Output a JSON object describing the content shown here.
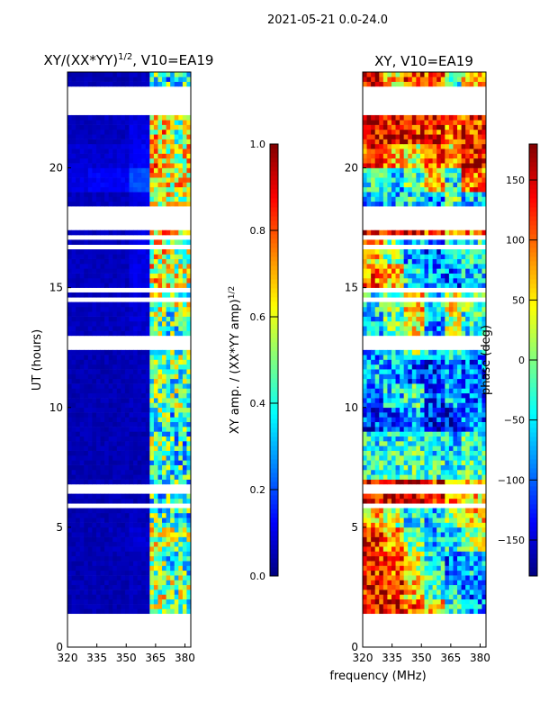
{
  "chart_data": [
    {
      "type": "heatmap",
      "suptitle": "2021-05-21 0.0-24.0",
      "title": "XY/(XX*YY)",
      "title_sup": "1/2",
      "title_suffix": ", V10=EA19",
      "xlabel": "frequency (MHz)",
      "ylabel": "UT (hours)",
      "xlim": [
        320,
        383
      ],
      "ylim": [
        0,
        24
      ],
      "xticks": [
        320,
        335,
        350,
        365,
        380
      ],
      "yticks": [
        0,
        5,
        10,
        15,
        20
      ],
      "colormap": "jet",
      "colorbar": {
        "label": "XY amp. / (XX*YY amp)",
        "label_sup": "1/2",
        "range": [
          0.0,
          1.0
        ],
        "ticks": [
          "0.0",
          "0.2",
          "0.4",
          "0.6",
          "0.8",
          "1.0"
        ]
      },
      "freq_bins": [
        320,
        330,
        340,
        350,
        360,
        370,
        383
      ],
      "blank_hours": [
        [
          0.15,
          1.4
        ],
        [
          12.5,
          13.0
        ],
        [
          17.5,
          18.3
        ],
        [
          22.3,
          23.4
        ]
      ],
      "hourly_mean_by_freq_bin": [
        [
          0.05,
          0.05,
          0.05,
          0.05,
          0.45,
          0.4
        ],
        [
          0.05,
          0.05,
          0.05,
          0.06,
          0.5,
          0.45
        ],
        [
          0.05,
          0.05,
          0.05,
          0.06,
          0.55,
          0.5
        ],
        [
          0.05,
          0.05,
          0.05,
          0.06,
          0.5,
          0.45
        ],
        [
          0.05,
          0.05,
          0.06,
          0.08,
          0.55,
          0.5
        ],
        [
          0.05,
          0.05,
          0.05,
          0.06,
          0.45,
          0.4
        ],
        [
          0.05,
          0.05,
          0.05,
          0.05,
          0.4,
          0.4
        ],
        [
          0.05,
          0.05,
          0.05,
          0.05,
          0.45,
          0.4
        ],
        [
          0.05,
          0.05,
          0.05,
          0.05,
          0.45,
          0.4
        ],
        [
          0.05,
          0.05,
          0.05,
          0.06,
          0.45,
          0.4
        ],
        [
          0.05,
          0.05,
          0.05,
          0.06,
          0.45,
          0.45
        ],
        [
          0.05,
          0.05,
          0.05,
          0.06,
          0.45,
          0.45
        ],
        [
          0.05,
          0.05,
          0.05,
          0.06,
          0.5,
          0.45
        ],
        [
          0.06,
          0.06,
          0.06,
          0.08,
          0.5,
          0.45
        ],
        [
          0.06,
          0.06,
          0.06,
          0.08,
          0.55,
          0.5
        ],
        [
          0.06,
          0.06,
          0.06,
          0.1,
          0.6,
          0.55
        ],
        [
          0.06,
          0.06,
          0.06,
          0.1,
          0.6,
          0.55
        ],
        [
          0.06,
          0.06,
          0.06,
          0.1,
          0.65,
          0.6
        ],
        [
          0.06,
          0.06,
          0.06,
          0.1,
          0.6,
          0.55
        ],
        [
          0.1,
          0.12,
          0.12,
          0.2,
          0.65,
          0.6
        ],
        [
          0.08,
          0.08,
          0.08,
          0.12,
          0.7,
          0.6
        ],
        [
          0.06,
          0.06,
          0.06,
          0.1,
          0.65,
          0.55
        ],
        [
          0.06,
          0.06,
          0.06,
          0.08,
          0.55,
          0.5
        ],
        [
          0.05,
          0.05,
          0.05,
          0.06,
          0.45,
          0.4
        ]
      ]
    },
    {
      "type": "heatmap",
      "title": "XY, V10=EA19",
      "xlabel": "frequency (MHz)",
      "xlim": [
        320,
        383
      ],
      "ylim": [
        0,
        24
      ],
      "xticks": [
        320,
        335,
        350,
        365,
        380
      ],
      "yticks": [
        0,
        5,
        10,
        15,
        20
      ],
      "colormap": "jet",
      "colorbar": {
        "label": "phase (deg)",
        "range": [
          -180,
          180
        ],
        "ticks": [
          "150",
          "100",
          "50",
          "0",
          "−50",
          "−100",
          "−150"
        ]
      },
      "freq_bins": [
        320,
        330,
        340,
        350,
        360,
        370,
        383
      ],
      "blank_hours": [
        [
          0.15,
          1.4
        ],
        [
          12.5,
          13.0
        ],
        [
          17.5,
          18.3
        ],
        [
          22.3,
          23.4
        ]
      ],
      "hourly_mean_by_freq_bin": [
        [
          -60,
          -40,
          -20,
          0,
          20,
          -40
        ],
        [
          140,
          130,
          100,
          60,
          -40,
          -80
        ],
        [
          140,
          120,
          60,
          -20,
          -60,
          -100
        ],
        [
          130,
          110,
          40,
          -40,
          -100,
          -60
        ],
        [
          120,
          80,
          0,
          -60,
          -40,
          20
        ],
        [
          60,
          20,
          -40,
          -60,
          0,
          60
        ],
        [
          150,
          150,
          140,
          130,
          100,
          60
        ],
        [
          -40,
          -30,
          -20,
          -30,
          -40,
          -20
        ],
        [
          -40,
          -40,
          -30,
          -50,
          -60,
          -30
        ],
        [
          -120,
          -100,
          -80,
          -130,
          -140,
          -100
        ],
        [
          -100,
          -60,
          -30,
          -120,
          -60,
          -100
        ],
        [
          -60,
          -80,
          -100,
          -120,
          -80,
          -100
        ],
        [
          -80,
          -40,
          0,
          -60,
          -20,
          -80
        ],
        [
          -60,
          -20,
          40,
          -80,
          20,
          -40
        ],
        [
          -40,
          0,
          60,
          -60,
          40,
          -20
        ],
        [
          100,
          60,
          -40,
          -80,
          -100,
          -60
        ],
        [
          60,
          0,
          -80,
          -100,
          -60,
          -40
        ],
        [
          150,
          150,
          140,
          120,
          60,
          80
        ],
        [
          -80,
          -60,
          -40,
          -80,
          -20,
          -60
        ],
        [
          -40,
          -60,
          -20,
          60,
          -40,
          100
        ],
        [
          120,
          80,
          40,
          100,
          60,
          140
        ],
        [
          150,
          140,
          130,
          120,
          100,
          120
        ],
        [
          150,
          150,
          140,
          130,
          120,
          120
        ],
        [
          140,
          60,
          120,
          100,
          -20,
          60
        ]
      ]
    }
  ]
}
